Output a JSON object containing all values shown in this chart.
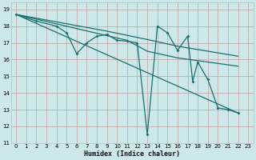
{
  "xlabel": "Humidex (Indice chaleur)",
  "bg_color": "#cce8e8",
  "grid_color_major": "#b8d4d4",
  "grid_color_minor": "#d4e8e8",
  "line_color": "#1a7070",
  "xlim": [
    -0.5,
    23.5
  ],
  "ylim": [
    11,
    19.4
  ],
  "xticks": [
    0,
    1,
    2,
    3,
    4,
    5,
    6,
    7,
    8,
    9,
    10,
    11,
    12,
    13,
    14,
    15,
    16,
    17,
    18,
    19,
    20,
    21,
    22,
    23
  ],
  "yticks": [
    11,
    12,
    13,
    14,
    15,
    16,
    17,
    18,
    19
  ],
  "series_main": [
    [
      0,
      18.7
    ],
    [
      2,
      18.3
    ],
    [
      4,
      18.0
    ],
    [
      5,
      17.6
    ],
    [
      6,
      16.35
    ],
    [
      7,
      17.0
    ],
    [
      8,
      17.4
    ],
    [
      9,
      17.5
    ],
    [
      10,
      17.15
    ],
    [
      11,
      17.1
    ],
    [
      12,
      17.0
    ],
    [
      13,
      11.5
    ],
    [
      14,
      18.0
    ],
    [
      15,
      17.6
    ],
    [
      16,
      16.55
    ],
    [
      17,
      17.4
    ],
    [
      17.5,
      14.7
    ],
    [
      18,
      15.85
    ],
    [
      19,
      14.8
    ],
    [
      20,
      13.1
    ],
    [
      21,
      13.0
    ],
    [
      22,
      12.8
    ]
  ],
  "series_smooth1": [
    [
      0,
      18.7
    ],
    [
      11,
      17.15
    ],
    [
      13,
      16.5
    ],
    [
      16,
      16.1
    ],
    [
      22,
      15.6
    ]
  ],
  "series_smooth2": [
    [
      0,
      18.7
    ],
    [
      9,
      17.7
    ],
    [
      13,
      17.2
    ],
    [
      16,
      16.8
    ],
    [
      21,
      16.3
    ],
    [
      22,
      16.2
    ]
  ],
  "line_diagonal": [
    [
      0,
      18.7
    ],
    [
      22,
      12.8
    ]
  ]
}
